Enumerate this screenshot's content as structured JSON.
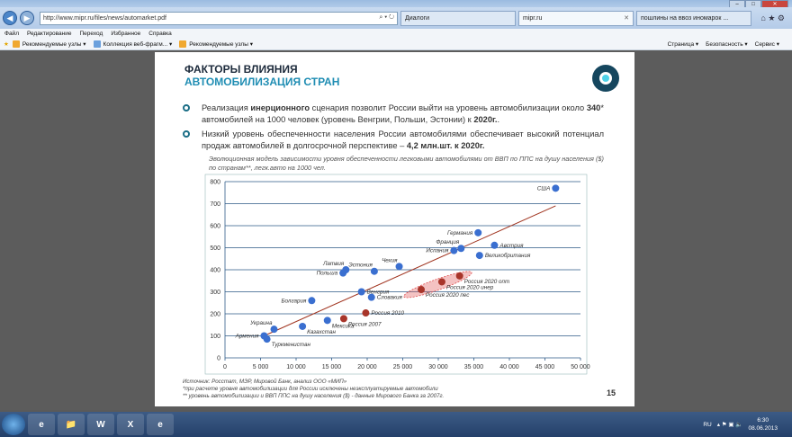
{
  "browser": {
    "address": "http://www.mipr.ru/files/news/automarket.pdf",
    "address_tools": "⌕ ▾ ↻",
    "tabs": [
      {
        "label": "Диалоги",
        "active": false
      },
      {
        "label": "mipr.ru",
        "active": true
      },
      {
        "label": "пошлины на ввоз иномарок ...",
        "active": false
      }
    ],
    "menu": [
      "Файл",
      "Редактирование",
      "Переход",
      "Избранное",
      "Справка"
    ],
    "favorites": [
      "Рекомендуемые узлы ▾",
      "Коллекция веб-фрагм... ▾",
      "Рекомендуемые узлы ▾"
    ],
    "right_tools": [
      "Страница ▾",
      "Безопасность ▾",
      "Сервис ▾"
    ]
  },
  "slide": {
    "title": "ФАКТОРЫ ВЛИЯНИЯ",
    "subtitle": "АВТОМОБИЛИЗАЦИЯ СТРАН",
    "bullet1": {
      "a": "Реализация ",
      "b": "инерционного",
      "c": " сценария позволит России выйти на уровень автомобилизации около ",
      "d": "340",
      "e": "* автомобилей на 1000 человек (уровень Венгрии, Польши, Эстонии) к ",
      "f": "2020г.",
      "g": "."
    },
    "bullet2": {
      "a": "Низкий уровень обеспеченности населения России автомобилями обеспечивает высокий потенциал продаж автомобилей в долгосрочной перспективе – ",
      "b": "4,2 млн.шт. к 2020г."
    },
    "caption": "Эволюционная модель зависимости уровня обеспеченности легковыми автомобилями от ВВП по ППС на душу населения ($) по странам**, легк.авто на 1000 чел.",
    "footnotes": [
      "Источник: Росстат, МЭР, Мировой Банк, анализ ООО «МИП»",
      "*при расчете уровня автомобилизации для России исключены неэксплуатируемые автомобили",
      "** уровень автомобилизации и ВВП ППС на душу населения ($) - данные Мирового Банка за 2007г."
    ],
    "page_number": "15"
  },
  "chart_data": {
    "type": "scatter",
    "xlim": [
      0,
      50000
    ],
    "ylim": [
      0,
      800
    ],
    "xticks": [
      "0",
      "5 000",
      "10 000",
      "15 000",
      "20 000",
      "25 000",
      "30 000",
      "35 000",
      "40 000",
      "45 000",
      "50 000"
    ],
    "yticks": [
      "0",
      "100",
      "200",
      "300",
      "400",
      "500",
      "600",
      "700",
      "800"
    ],
    "grid": "horizontal",
    "colors": {
      "country": "#3a6fd0",
      "russia": "#a8352a",
      "trend": "#a0331e",
      "scenario_area": "#e05050"
    },
    "points": [
      {
        "label": "США",
        "x": 46500,
        "y": 770,
        "group": "country",
        "side": "left"
      },
      {
        "label": "Германия",
        "x": 35600,
        "y": 568,
        "group": "country",
        "side": "left"
      },
      {
        "label": "Франция",
        "x": 33200,
        "y": 497,
        "group": "country",
        "side": "above-left"
      },
      {
        "label": "Испания",
        "x": 32200,
        "y": 487,
        "group": "country",
        "side": "left"
      },
      {
        "label": "Австрия",
        "x": 37900,
        "y": 511,
        "group": "country",
        "side": "right"
      },
      {
        "label": "Великобритания",
        "x": 35800,
        "y": 465,
        "group": "country",
        "side": "right"
      },
      {
        "label": "Чехия",
        "x": 24500,
        "y": 415,
        "group": "country",
        "side": "above-left"
      },
      {
        "label": "Эстония",
        "x": 21000,
        "y": 393,
        "group": "country",
        "side": "above-left"
      },
      {
        "label": "Латвия",
        "x": 17000,
        "y": 400,
        "group": "country",
        "side": "above-left"
      },
      {
        "label": "Польша",
        "x": 16600,
        "y": 385,
        "group": "country",
        "side": "left"
      },
      {
        "label": "Венгрия",
        "x": 19200,
        "y": 300,
        "group": "country",
        "side": "right"
      },
      {
        "label": "Словакия",
        "x": 20600,
        "y": 275,
        "group": "country",
        "side": "right"
      },
      {
        "label": "Болгария",
        "x": 12200,
        "y": 260,
        "group": "country",
        "side": "left"
      },
      {
        "label": "Мексика",
        "x": 14400,
        "y": 170,
        "group": "country",
        "side": "below-right"
      },
      {
        "label": "Казахстан",
        "x": 10900,
        "y": 143,
        "group": "country",
        "side": "below-right"
      },
      {
        "label": "Украина",
        "x": 6900,
        "y": 130,
        "group": "country",
        "side": "above-left"
      },
      {
        "label": "Армения",
        "x": 5500,
        "y": 100,
        "group": "country",
        "side": "left"
      },
      {
        "label": "Туркменистан",
        "x": 5900,
        "y": 85,
        "group": "country",
        "side": "below-right"
      },
      {
        "label": "Россия 2007",
        "x": 16700,
        "y": 178,
        "group": "russia",
        "side": "below-right"
      },
      {
        "label": "Россия 2010",
        "x": 19800,
        "y": 204,
        "group": "russia",
        "side": "right"
      },
      {
        "label": "Россия 2020 пес",
        "x": 27600,
        "y": 310,
        "group": "russia",
        "side": "below-right"
      },
      {
        "label": "Россия 2020 инер",
        "x": 30500,
        "y": 345,
        "group": "russia",
        "side": "below-right"
      },
      {
        "label": "Россия 2020 опт",
        "x": 33000,
        "y": 372,
        "group": "russia",
        "side": "below-right"
      }
    ],
    "trendline": [
      [
        5500,
        100
      ],
      [
        46500,
        690
      ]
    ]
  },
  "taskbar": {
    "lang": "RU",
    "time": "6:30",
    "date": "08.06.2013",
    "apps": [
      "e",
      "📁",
      "W",
      "X",
      "e"
    ]
  }
}
